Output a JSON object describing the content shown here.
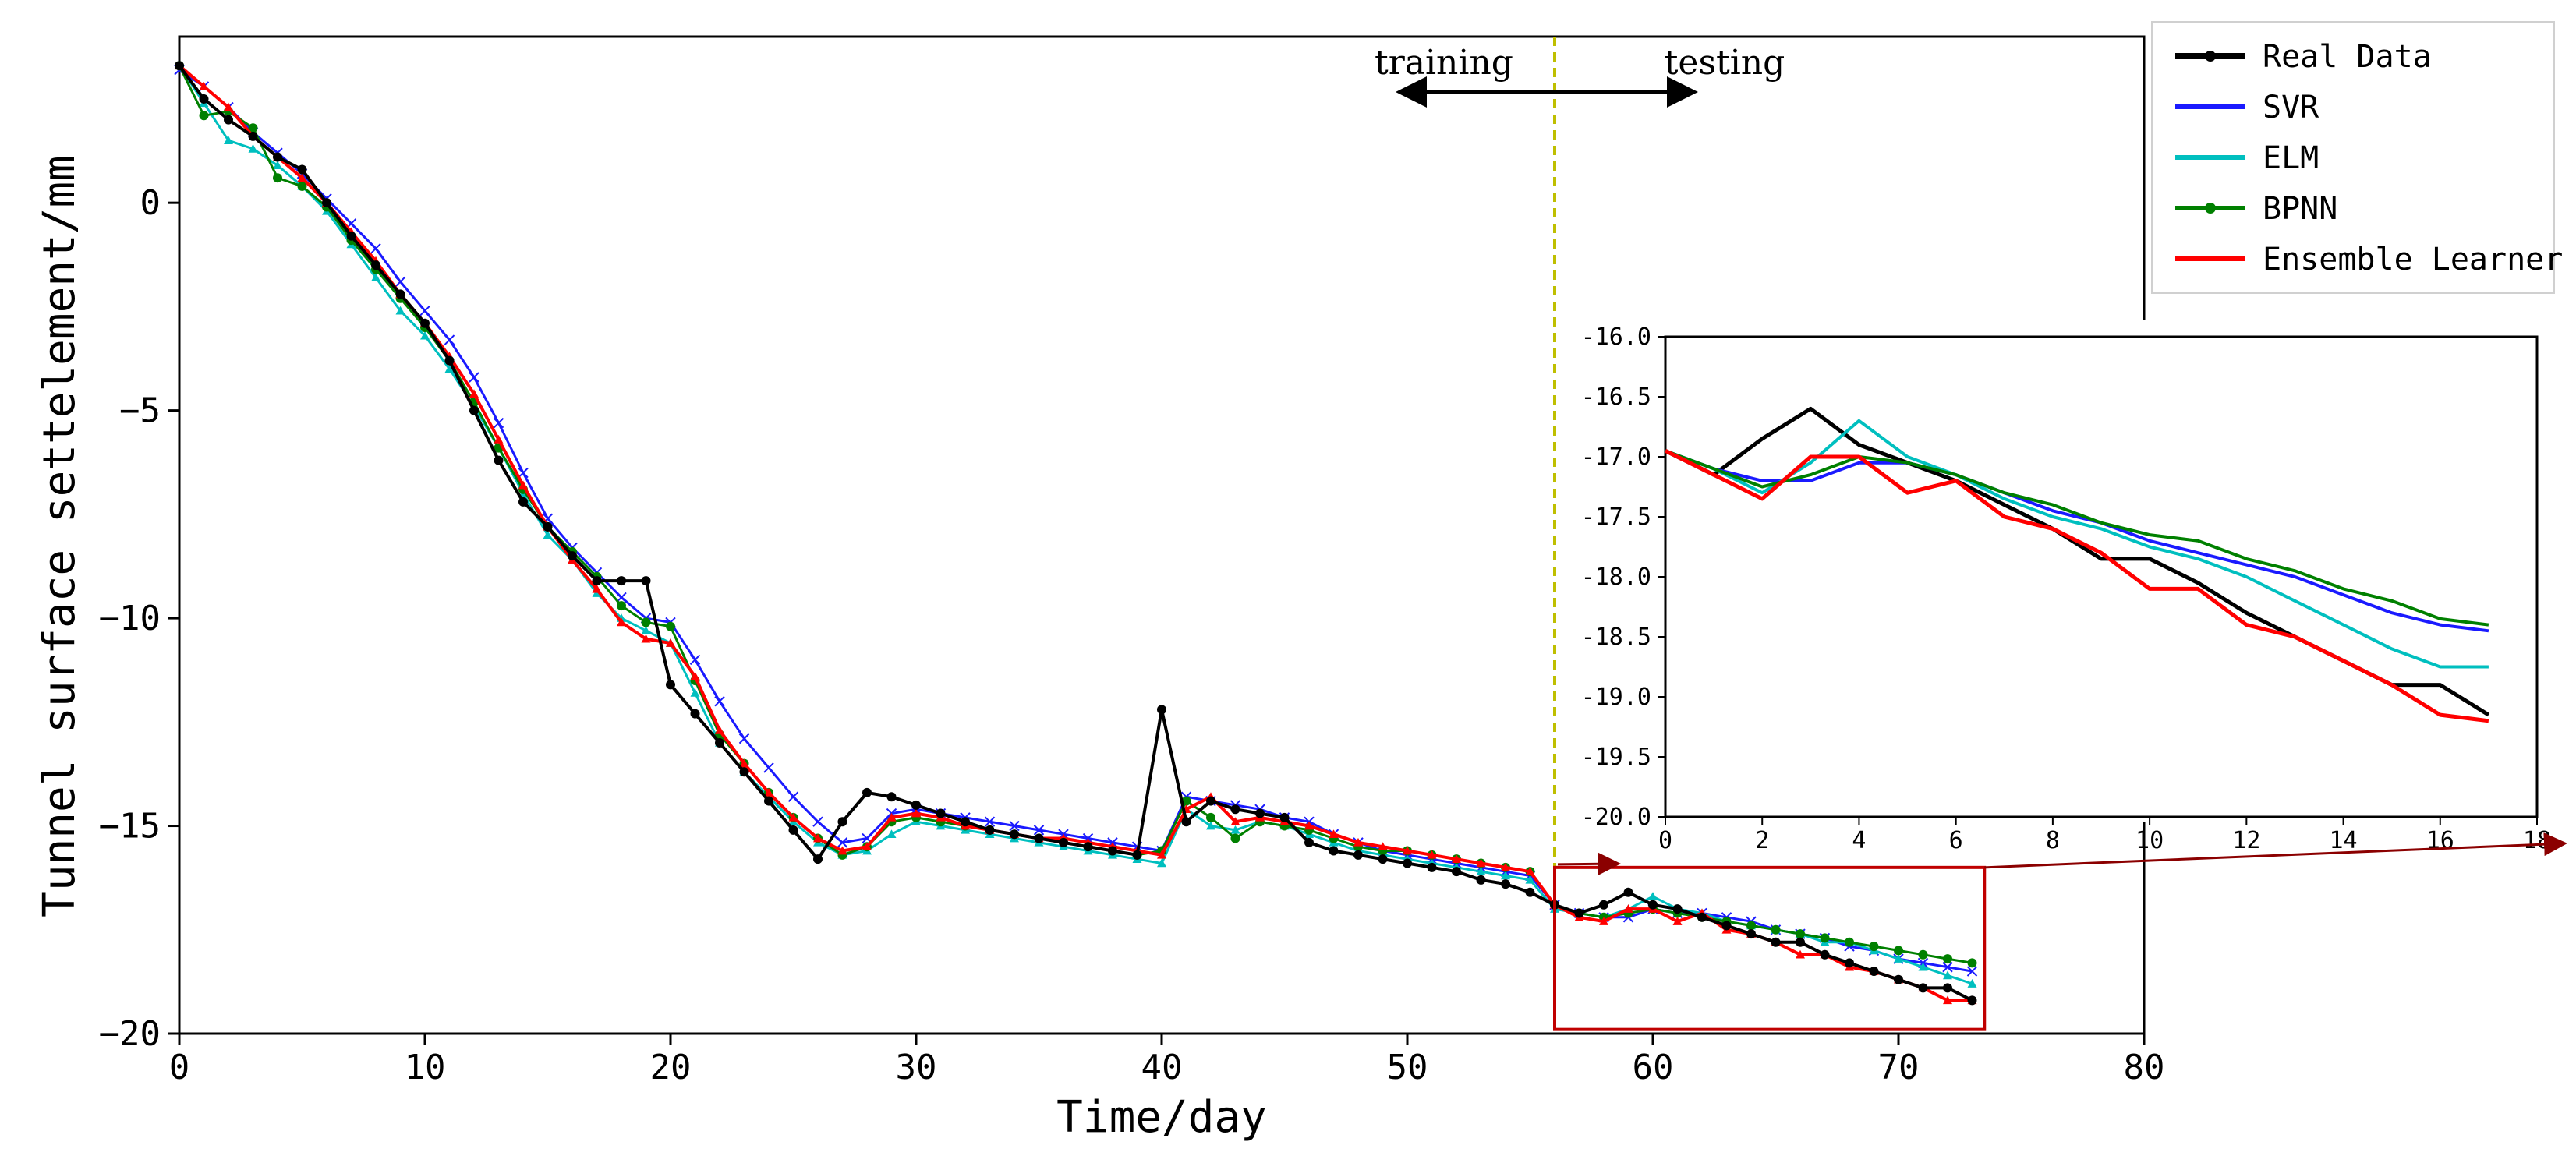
{
  "chart_data": [
    {
      "type": "line",
      "xlabel": "Time/day",
      "ylabel": "Tunnel surface settelement/mm",
      "xlim": [
        0,
        80
      ],
      "ylim": [
        -20,
        4
      ],
      "xticks": [
        0,
        10,
        20,
        30,
        40,
        50,
        60,
        70,
        80
      ],
      "yticks": [
        0,
        -5,
        -10,
        -15,
        -20
      ],
      "split_x": 56,
      "split_labels": {
        "left": "training",
        "right": "testing"
      },
      "legend": {
        "position": "top-right",
        "entries": [
          "Real Data",
          "SVR",
          "ELM",
          "BPNN",
          "Ensemble Learner"
        ]
      },
      "highlight_box": {
        "x": [
          56,
          73.5
        ],
        "y": [
          -19.9,
          -16.0
        ]
      },
      "series": [
        {
          "name": "Real Data",
          "color": "#000000",
          "marker": "dot",
          "x": [
            0,
            1,
            2,
            3,
            4,
            5,
            6,
            7,
            8,
            9,
            10,
            11,
            12,
            13,
            14,
            15,
            16,
            17,
            18,
            19,
            20,
            21,
            22,
            23,
            24,
            25,
            26,
            27,
            28,
            29,
            30,
            31,
            32,
            33,
            34,
            35,
            36,
            37,
            38,
            39,
            40,
            41,
            42,
            43,
            44,
            45,
            46,
            47,
            48,
            49,
            50,
            51,
            52,
            53,
            54,
            55,
            56,
            57,
            58,
            59,
            60,
            61,
            62,
            63,
            64,
            65,
            66,
            67,
            68,
            69,
            70,
            71,
            72,
            73
          ],
          "y": [
            3.3,
            2.5,
            2.0,
            1.6,
            1.1,
            0.8,
            0.0,
            -0.8,
            -1.5,
            -2.2,
            -2.9,
            -3.8,
            -5.0,
            -6.2,
            -7.2,
            -7.8,
            -8.5,
            -9.1,
            -9.1,
            -9.1,
            -11.6,
            -12.3,
            -13.0,
            -13.7,
            -14.4,
            -15.1,
            -15.8,
            -14.9,
            -14.2,
            -14.3,
            -14.5,
            -14.7,
            -14.9,
            -15.1,
            -15.2,
            -15.3,
            -15.4,
            -15.5,
            -15.6,
            -15.7,
            -12.2,
            -14.9,
            -14.4,
            -14.6,
            -14.7,
            -14.8,
            -15.4,
            -15.6,
            -15.7,
            -15.8,
            -15.9,
            -16.0,
            -16.1,
            -16.3,
            -16.4,
            -16.6,
            -16.9,
            -17.1,
            -16.9,
            -16.6,
            -16.9,
            -17.0,
            -17.2,
            -17.4,
            -17.6,
            -17.8,
            -17.8,
            -18.1,
            -18.3,
            -18.5,
            -18.7,
            -18.9,
            -18.9,
            -19.2
          ]
        },
        {
          "name": "SVR",
          "color": "#1a1aff",
          "marker": "x",
          "x": [
            0,
            1,
            2,
            3,
            4,
            5,
            6,
            7,
            8,
            9,
            10,
            11,
            12,
            13,
            14,
            15,
            16,
            17,
            18,
            19,
            20,
            21,
            22,
            23,
            24,
            25,
            26,
            27,
            28,
            29,
            30,
            31,
            32,
            33,
            34,
            35,
            36,
            37,
            38,
            39,
            40,
            41,
            42,
            43,
            44,
            45,
            46,
            47,
            48,
            49,
            50,
            51,
            52,
            53,
            54,
            55,
            56,
            57,
            58,
            59,
            60,
            61,
            62,
            63,
            64,
            65,
            66,
            67,
            68,
            69,
            70,
            71,
            72,
            73
          ],
          "y": [
            3.2,
            2.8,
            2.3,
            1.7,
            1.2,
            0.7,
            0.1,
            -0.5,
            -1.1,
            -1.9,
            -2.6,
            -3.3,
            -4.2,
            -5.3,
            -6.5,
            -7.6,
            -8.3,
            -8.9,
            -9.5,
            -10.0,
            -10.1,
            -11.0,
            -12.0,
            -12.9,
            -13.6,
            -14.3,
            -14.9,
            -15.4,
            -15.3,
            -14.7,
            -14.6,
            -14.7,
            -14.8,
            -14.9,
            -15.0,
            -15.1,
            -15.2,
            -15.3,
            -15.4,
            -15.5,
            -15.6,
            -14.3,
            -14.4,
            -14.5,
            -14.6,
            -14.8,
            -14.9,
            -15.2,
            -15.4,
            -15.6,
            -15.7,
            -15.8,
            -15.9,
            -16.0,
            -16.1,
            -16.2,
            -16.9,
            -17.1,
            -17.2,
            -17.2,
            -17.0,
            -17.1,
            -17.1,
            -17.2,
            -17.3,
            -17.5,
            -17.6,
            -17.7,
            -17.9,
            -18.0,
            -18.2,
            -18.3,
            -18.4,
            -18.5
          ]
        },
        {
          "name": "ELM",
          "color": "#00bfbf",
          "marker": "tri",
          "x": [
            0,
            1,
            2,
            3,
            4,
            5,
            6,
            7,
            8,
            9,
            10,
            11,
            12,
            13,
            14,
            15,
            16,
            17,
            18,
            19,
            20,
            21,
            22,
            23,
            24,
            25,
            26,
            27,
            28,
            29,
            30,
            31,
            32,
            33,
            34,
            35,
            36,
            37,
            38,
            39,
            40,
            41,
            42,
            43,
            44,
            45,
            46,
            47,
            48,
            49,
            50,
            51,
            52,
            53,
            54,
            55,
            56,
            57,
            58,
            59,
            60,
            61,
            62,
            63,
            64,
            65,
            66,
            67,
            68,
            69,
            70,
            71,
            72,
            73
          ],
          "y": [
            3.3,
            2.4,
            1.5,
            1.3,
            0.9,
            0.4,
            -0.2,
            -1.0,
            -1.8,
            -2.6,
            -3.2,
            -4.0,
            -4.9,
            -5.9,
            -7.0,
            -8.0,
            -8.6,
            -9.4,
            -10.0,
            -10.3,
            -10.6,
            -11.8,
            -13.0,
            -13.7,
            -14.3,
            -14.9,
            -15.4,
            -15.7,
            -15.6,
            -15.2,
            -14.9,
            -15.0,
            -15.1,
            -15.2,
            -15.3,
            -15.4,
            -15.5,
            -15.6,
            -15.7,
            -15.8,
            -15.9,
            -14.6,
            -15.0,
            -15.1,
            -14.9,
            -15.0,
            -15.2,
            -15.4,
            -15.6,
            -15.7,
            -15.8,
            -15.9,
            -16.0,
            -16.1,
            -16.2,
            -16.3,
            -17.0,
            -17.1,
            -17.2,
            -17.0,
            -16.7,
            -17.0,
            -17.1,
            -17.3,
            -17.4,
            -17.5,
            -17.6,
            -17.8,
            -17.8,
            -18.0,
            -18.2,
            -18.4,
            -18.6,
            -18.8
          ]
        },
        {
          "name": "BPNN",
          "color": "#008000",
          "marker": "dot",
          "x": [
            0,
            1,
            2,
            3,
            4,
            5,
            6,
            7,
            8,
            9,
            10,
            11,
            12,
            13,
            14,
            15,
            16,
            17,
            18,
            19,
            20,
            21,
            22,
            23,
            24,
            25,
            26,
            27,
            28,
            29,
            30,
            31,
            32,
            33,
            34,
            35,
            36,
            37,
            38,
            39,
            40,
            41,
            42,
            43,
            44,
            45,
            46,
            47,
            48,
            49,
            50,
            51,
            52,
            53,
            54,
            55,
            56,
            57,
            58,
            59,
            60,
            61,
            62,
            63,
            64,
            65,
            66,
            67,
            68,
            69,
            70,
            71,
            72,
            73
          ],
          "y": [
            3.3,
            2.1,
            2.2,
            1.8,
            0.6,
            0.4,
            -0.1,
            -0.9,
            -1.6,
            -2.3,
            -3.0,
            -3.8,
            -4.8,
            -5.9,
            -6.9,
            -7.8,
            -8.4,
            -9.0,
            -9.7,
            -10.1,
            -10.2,
            -11.5,
            -12.8,
            -13.5,
            -14.2,
            -14.8,
            -15.3,
            -15.7,
            -15.5,
            -14.9,
            -14.8,
            -14.9,
            -15.0,
            -15.1,
            -15.2,
            -15.3,
            -15.4,
            -15.5,
            -15.6,
            -15.7,
            -15.6,
            -14.4,
            -14.8,
            -15.3,
            -14.9,
            -15.0,
            -15.1,
            -15.3,
            -15.5,
            -15.6,
            -15.6,
            -15.7,
            -15.8,
            -15.9,
            -16.0,
            -16.1,
            -16.9,
            -17.1,
            -17.2,
            -17.1,
            -17.0,
            -17.1,
            -17.2,
            -17.3,
            -17.4,
            -17.5,
            -17.6,
            -17.7,
            -17.8,
            -17.9,
            -18.0,
            -18.1,
            -18.2,
            -18.3
          ]
        },
        {
          "name": "Ensemble Learner",
          "color": "#ff0000",
          "marker": "tri",
          "x": [
            0,
            1,
            2,
            3,
            4,
            5,
            6,
            7,
            8,
            9,
            10,
            11,
            12,
            13,
            14,
            15,
            16,
            17,
            18,
            19,
            20,
            21,
            22,
            23,
            24,
            25,
            26,
            27,
            28,
            29,
            30,
            31,
            32,
            33,
            34,
            35,
            36,
            37,
            38,
            39,
            40,
            41,
            42,
            43,
            44,
            45,
            46,
            47,
            48,
            49,
            50,
            51,
            52,
            53,
            54,
            55,
            56,
            57,
            58,
            59,
            60,
            61,
            62,
            63,
            64,
            65,
            66,
            67,
            68,
            69,
            70,
            71,
            72,
            73
          ],
          "y": [
            3.3,
            2.8,
            2.3,
            1.6,
            1.1,
            0.6,
            0.0,
            -0.7,
            -1.4,
            -2.2,
            -2.9,
            -3.7,
            -4.6,
            -5.7,
            -6.8,
            -7.8,
            -8.6,
            -9.3,
            -10.1,
            -10.5,
            -10.6,
            -11.4,
            -12.7,
            -13.5,
            -14.2,
            -14.8,
            -15.3,
            -15.6,
            -15.5,
            -14.8,
            -14.7,
            -14.8,
            -15.0,
            -15.1,
            -15.2,
            -15.3,
            -15.3,
            -15.4,
            -15.5,
            -15.6,
            -15.7,
            -14.6,
            -14.3,
            -14.9,
            -14.8,
            -14.9,
            -15.0,
            -15.2,
            -15.4,
            -15.5,
            -15.6,
            -15.7,
            -15.8,
            -15.9,
            -16.0,
            -16.1,
            -16.9,
            -17.2,
            -17.3,
            -17.0,
            -17.0,
            -17.3,
            -17.1,
            -17.5,
            -17.6,
            -17.8,
            -18.1,
            -18.1,
            -18.4,
            -18.5,
            -18.7,
            -18.9,
            -19.2,
            -19.2
          ]
        }
      ]
    },
    {
      "type": "line",
      "title": "",
      "xlim": [
        0,
        18
      ],
      "ylim": [
        -20.0,
        -16.0
      ],
      "xticks": [
        0,
        2,
        4,
        6,
        8,
        10,
        12,
        14,
        16,
        18
      ],
      "yticks": [
        -16.0,
        -16.5,
        -17.0,
        -17.5,
        -18.0,
        -18.5,
        -19.0,
        -19.5,
        -20.0
      ],
      "tick_labels_x": [
        "0",
        "2",
        "4",
        "6",
        "8",
        "10",
        "12",
        "14",
        "16",
        "18"
      ],
      "tick_labels_y": [
        "-16.0",
        "-16.5",
        "-17.0",
        "-17.5",
        "-18.0",
        "-18.5",
        "-19.0",
        "-19.5",
        "-20.0"
      ],
      "series": [
        {
          "name": "Real Data",
          "color": "#000000",
          "x": [
            0,
            1,
            2,
            3,
            4,
            5,
            6,
            7,
            8,
            9,
            10,
            11,
            12,
            13,
            14,
            15,
            16,
            17
          ],
          "y": [
            -16.95,
            -17.15,
            -16.85,
            -16.6,
            -16.9,
            -17.05,
            -17.2,
            -17.4,
            -17.6,
            -17.85,
            -17.85,
            -18.05,
            -18.3,
            -18.5,
            -18.7,
            -18.9,
            -18.9,
            -19.15
          ]
        },
        {
          "name": "SVR",
          "color": "#1a1aff",
          "x": [
            0,
            1,
            2,
            3,
            4,
            5,
            6,
            7,
            8,
            9,
            10,
            11,
            12,
            13,
            14,
            15,
            16,
            17
          ],
          "y": [
            -16.95,
            -17.1,
            -17.2,
            -17.2,
            -17.05,
            -17.05,
            -17.15,
            -17.3,
            -17.45,
            -17.55,
            -17.7,
            -17.8,
            -17.9,
            -18.0,
            -18.15,
            -18.3,
            -18.4,
            -18.45
          ]
        },
        {
          "name": "ELM",
          "color": "#00bfbf",
          "x": [
            0,
            1,
            2,
            3,
            4,
            5,
            6,
            7,
            8,
            9,
            10,
            11,
            12,
            13,
            14,
            15,
            16,
            17
          ],
          "y": [
            -16.95,
            -17.1,
            -17.3,
            -17.05,
            -16.7,
            -17.0,
            -17.15,
            -17.35,
            -17.5,
            -17.6,
            -17.75,
            -17.85,
            -18.0,
            -18.2,
            -18.4,
            -18.6,
            -18.75,
            -18.75
          ]
        },
        {
          "name": "BPNN",
          "color": "#008000",
          "x": [
            0,
            1,
            2,
            3,
            4,
            5,
            6,
            7,
            8,
            9,
            10,
            11,
            12,
            13,
            14,
            15,
            16,
            17
          ],
          "y": [
            -16.95,
            -17.1,
            -17.25,
            -17.15,
            -17.0,
            -17.05,
            -17.15,
            -17.3,
            -17.4,
            -17.55,
            -17.65,
            -17.7,
            -17.85,
            -17.95,
            -18.1,
            -18.2,
            -18.35,
            -18.4
          ]
        },
        {
          "name": "Ensemble Learner",
          "color": "#ff0000",
          "x": [
            0,
            1,
            2,
            3,
            4,
            5,
            6,
            7,
            8,
            9,
            10,
            11,
            12,
            13,
            14,
            15,
            16,
            17
          ],
          "y": [
            -16.95,
            -17.15,
            -17.35,
            -17.0,
            -17.0,
            -17.3,
            -17.2,
            -17.5,
            -17.6,
            -17.8,
            -18.1,
            -18.1,
            -18.4,
            -18.5,
            -18.7,
            -18.9,
            -19.15,
            -19.2
          ]
        }
      ]
    }
  ]
}
